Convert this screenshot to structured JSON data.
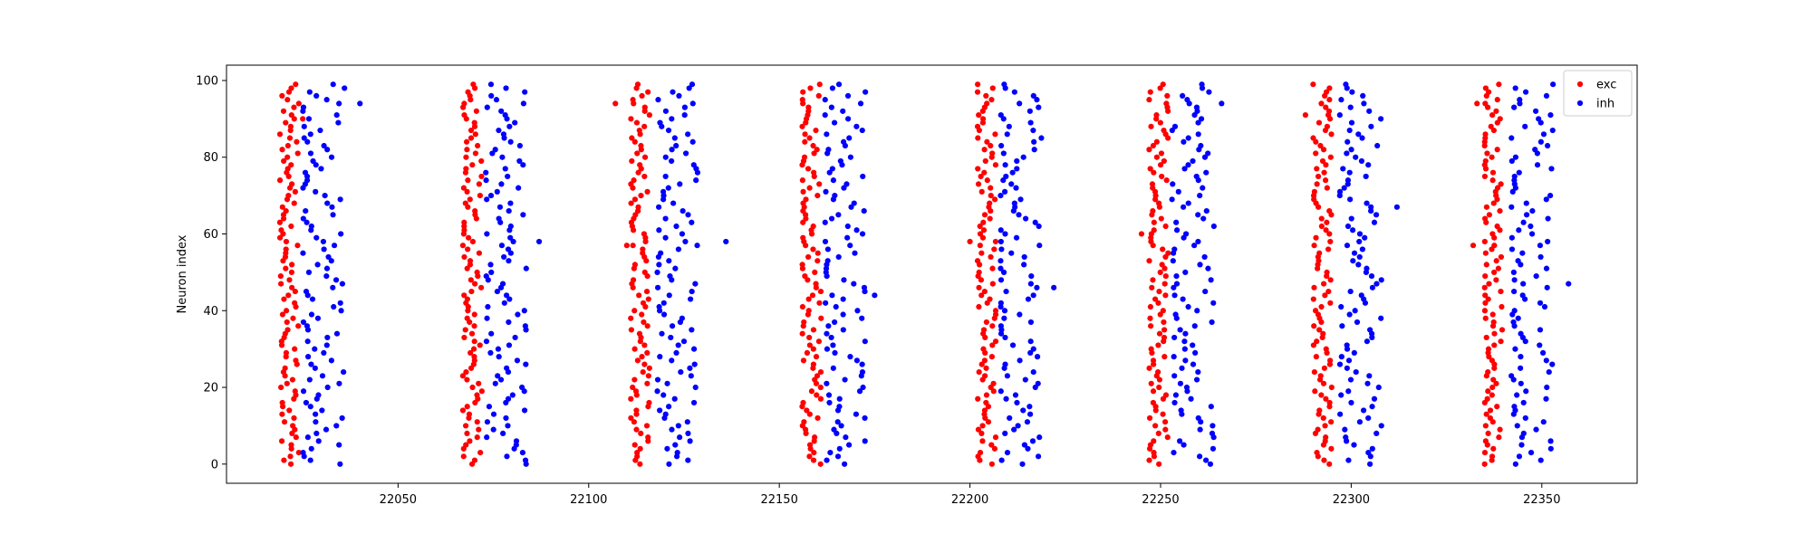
{
  "chart_data": {
    "type": "scatter",
    "title": "",
    "xlabel": "",
    "ylabel": "Neuron index",
    "xlim": [
      22005,
      22375
    ],
    "ylim": [
      -5,
      104
    ],
    "xticks": [
      22050,
      22100,
      22150,
      22200,
      22250,
      22300,
      22350
    ],
    "yticks": [
      0,
      20,
      40,
      60,
      80,
      100
    ],
    "grid": false,
    "legend": {
      "placement": "top-right"
    },
    "neuron_count": 100,
    "series": [
      {
        "name": "exc",
        "color": "#ff0000",
        "burst_onsets": [
          22019,
          22067,
          22111,
          22156,
          22202,
          22247,
          22290,
          22335
        ],
        "burst_width": 5,
        "stragglers": [
          {
            "x": 22025,
            "y": 90
          },
          {
            "x": 22107,
            "y": 94
          },
          {
            "x": 22110,
            "y": 57
          },
          {
            "x": 22200,
            "y": 58
          },
          {
            "x": 22245,
            "y": 60
          },
          {
            "x": 22288,
            "y": 91
          },
          {
            "x": 22333,
            "y": 94
          },
          {
            "x": 22332,
            "y": 57
          }
        ]
      },
      {
        "name": "inh",
        "color": "#0000ff",
        "burst_onsets": [
          22025,
          22073,
          22118,
          22162,
          22208,
          22253,
          22297,
          22342
        ],
        "burst_width": 11,
        "stragglers": [
          {
            "x": 22040,
            "y": 94
          },
          {
            "x": 22087,
            "y": 58
          },
          {
            "x": 22136,
            "y": 58
          },
          {
            "x": 22175,
            "y": 44
          },
          {
            "x": 22222,
            "y": 46
          },
          {
            "x": 22266,
            "y": 94
          },
          {
            "x": 22312,
            "y": 67
          },
          {
            "x": 22357,
            "y": 47
          }
        ]
      }
    ]
  }
}
